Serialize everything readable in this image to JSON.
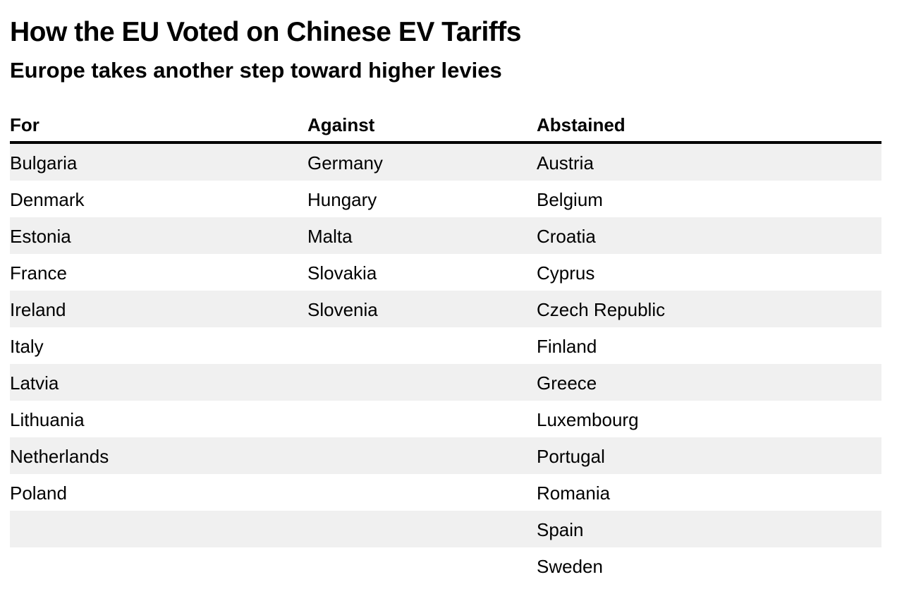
{
  "chart_data": {
    "type": "table",
    "title": "How the EU Voted on Chinese EV Tariffs",
    "subtitle": "Europe takes another step toward higher levies",
    "columns": [
      "For",
      "Against",
      "Abstained"
    ],
    "rows": [
      [
        "Bulgaria",
        "Germany",
        "Austria"
      ],
      [
        "Denmark",
        "Hungary",
        "Belgium"
      ],
      [
        "Estonia",
        "Malta",
        "Croatia"
      ],
      [
        "France",
        "Slovakia",
        "Cyprus"
      ],
      [
        "Ireland",
        "Slovenia",
        "Czech Republic"
      ],
      [
        "Italy",
        "",
        "Finland"
      ],
      [
        "Latvia",
        "",
        "Greece"
      ],
      [
        "Lithuania",
        "",
        "Luxembourg"
      ],
      [
        "Netherlands",
        "",
        "Portugal"
      ],
      [
        "Poland",
        "",
        "Romania"
      ],
      [
        "",
        "",
        "Spain"
      ],
      [
        "",
        "",
        "Sweden"
      ]
    ]
  },
  "colors": {
    "text": "#000000",
    "row_shade": "#f0f0f0",
    "header_rule": "#000000",
    "background": "#ffffff"
  }
}
